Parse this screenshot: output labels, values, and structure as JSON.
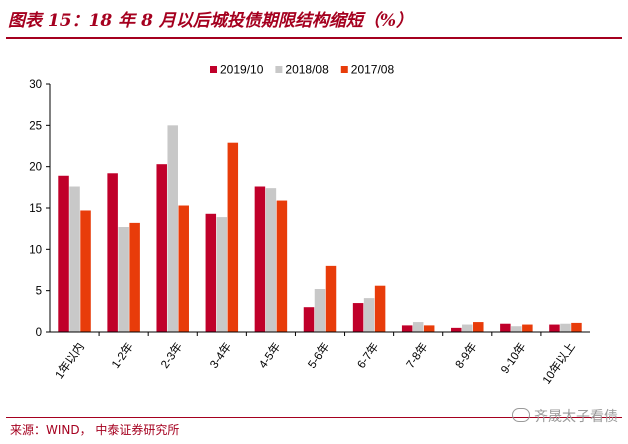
{
  "header": {
    "title": "图表 15：18 年 8 月以后城投债期限结构缩短（%）"
  },
  "footer": {
    "source": "来源：WIND， 中泰证券研究所",
    "watermark": "齐晟太子看债"
  },
  "chart_data": {
    "type": "bar",
    "title": "",
    "xlabel": "",
    "ylabel": "",
    "ylim": [
      0,
      30
    ],
    "yticks": [
      0,
      5,
      10,
      15,
      20,
      25,
      30
    ],
    "grid": false,
    "legend_position": "top",
    "categories": [
      "1年以内",
      "1-2年",
      "2-3年",
      "3-4年",
      "4-5年",
      "5-6年",
      "6-7年",
      "7-8年",
      "8-9年",
      "9-10年",
      "10年以上"
    ],
    "series": [
      {
        "name": "2019/10",
        "color": "#c0002a",
        "values": [
          18.9,
          19.2,
          20.3,
          14.3,
          17.6,
          3.0,
          3.5,
          0.8,
          0.5,
          1.0,
          0.9
        ]
      },
      {
        "name": "2018/08",
        "color": "#c8c8c8",
        "values": [
          17.6,
          12.7,
          25.0,
          13.9,
          17.4,
          5.2,
          4.1,
          1.2,
          0.9,
          0.7,
          1.0
        ]
      },
      {
        "name": "2017/08",
        "color": "#e83c0a",
        "values": [
          14.7,
          13.2,
          15.3,
          22.9,
          15.9,
          8.0,
          5.6,
          0.8,
          1.2,
          0.9,
          1.1
        ]
      }
    ]
  }
}
